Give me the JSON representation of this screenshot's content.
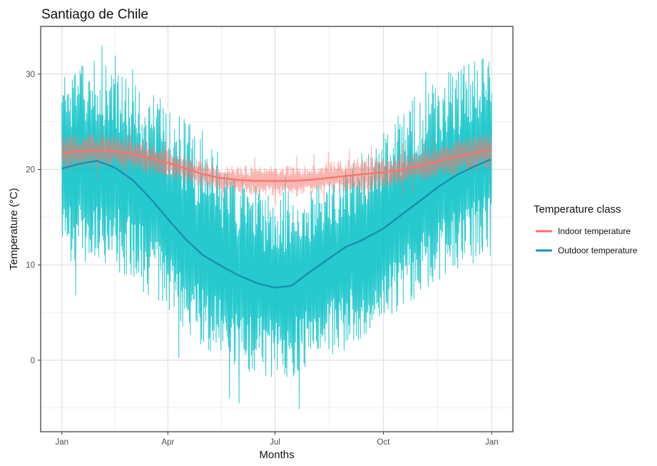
{
  "chart_data": {
    "type": "line",
    "title": "Santiago de Chile",
    "xlabel": "Months",
    "ylabel": "Temperature (°C)",
    "x_tick_labels": [
      "Jan",
      "Apr",
      "Jul",
      "Oct",
      "Jan"
    ],
    "x_ticks_days": [
      0,
      90,
      181,
      273,
      365
    ],
    "xlim_days": [
      -18,
      383
    ],
    "y_ticks": [
      0,
      10,
      20,
      30
    ],
    "ylim": [
      -7.5,
      35
    ],
    "grid": true,
    "legend": {
      "title": "Temperature class",
      "placement": "right",
      "entries": [
        "Indoor temperature",
        "Outdoor temperature"
      ]
    },
    "series": [
      {
        "name": "Indoor temperature",
        "color": "#F8766D",
        "kind": "hourly raw series with smoothed trend",
        "smooth_days": [
          0,
          15,
          30,
          45,
          60,
          75,
          90,
          105,
          120,
          135,
          150,
          165,
          181,
          195,
          210,
          225,
          240,
          255,
          273,
          290,
          305,
          320,
          335,
          350,
          365
        ],
        "smooth_values": [
          21.7,
          21.9,
          22.0,
          21.9,
          21.6,
          21.2,
          20.7,
          20.1,
          19.5,
          19.1,
          18.9,
          18.8,
          18.8,
          18.8,
          18.9,
          19.1,
          19.3,
          19.5,
          19.7,
          20.0,
          20.4,
          20.9,
          21.3,
          21.7,
          22.1
        ],
        "raw_spread_by_day": [
          [
            0,
            2.0
          ],
          [
            60,
            1.8
          ],
          [
            110,
            1.5
          ],
          [
            181,
            1.6
          ],
          [
            260,
            1.8
          ],
          [
            300,
            1.7
          ],
          [
            365,
            2.0
          ]
        ]
      },
      {
        "name": "Outdoor temperature",
        "color": "#00BFC4",
        "kind": "hourly raw series with smoothed trend",
        "smooth_days": [
          0,
          15,
          30,
          45,
          60,
          75,
          90,
          105,
          120,
          135,
          150,
          165,
          181,
          195,
          210,
          225,
          240,
          255,
          273,
          290,
          305,
          320,
          335,
          350,
          365
        ],
        "smooth_values": [
          20.1,
          20.6,
          20.9,
          20.2,
          18.9,
          17.0,
          14.8,
          12.7,
          11.0,
          9.9,
          8.9,
          8.1,
          7.6,
          7.8,
          9.2,
          10.5,
          11.8,
          12.6,
          13.8,
          15.4,
          16.8,
          18.2,
          19.4,
          20.3,
          21.1
        ],
        "raw_low_by_day": [
          [
            0,
            10.5
          ],
          [
            30,
            10.0
          ],
          [
            60,
            8.0
          ],
          [
            90,
            5.0
          ],
          [
            120,
            1.0
          ],
          [
            150,
            -1.0
          ],
          [
            181,
            -2.0
          ],
          [
            210,
            -1.5
          ],
          [
            240,
            1.0
          ],
          [
            273,
            4.0
          ],
          [
            300,
            6.0
          ],
          [
            330,
            9.0
          ],
          [
            365,
            11.0
          ]
        ],
        "raw_high_by_day": [
          [
            0,
            30.0
          ],
          [
            30,
            32.0
          ],
          [
            60,
            29.0
          ],
          [
            90,
            27.0
          ],
          [
            120,
            24.0
          ],
          [
            150,
            19.0
          ],
          [
            181,
            17.5
          ],
          [
            210,
            18.0
          ],
          [
            240,
            20.0
          ],
          [
            273,
            24.0
          ],
          [
            300,
            28.0
          ],
          [
            330,
            30.5
          ],
          [
            365,
            32.0
          ]
        ],
        "raw_min": -6.0,
        "raw_max": 33.0
      }
    ]
  }
}
